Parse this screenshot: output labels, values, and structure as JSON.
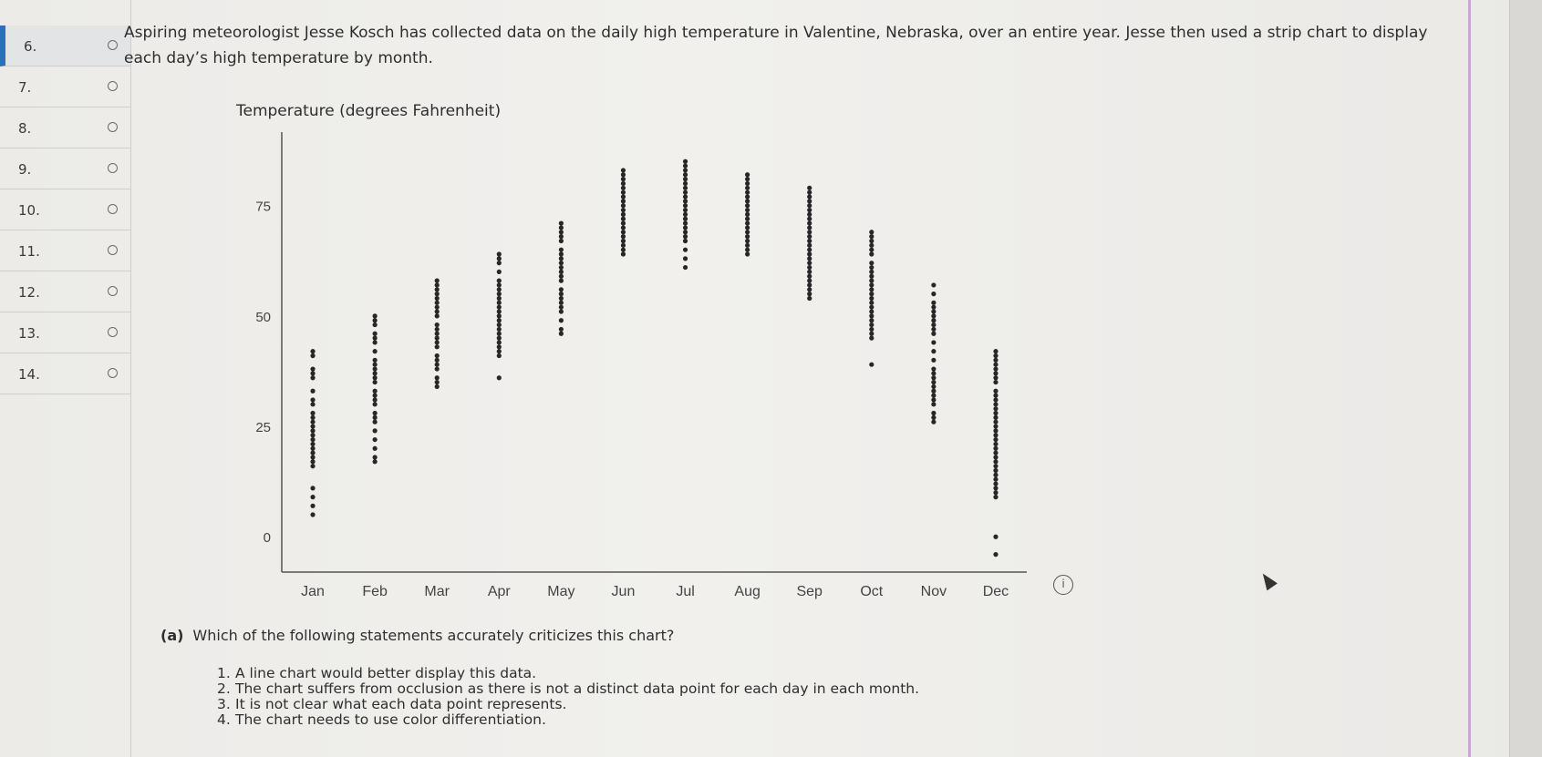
{
  "sidebar": {
    "items": [
      {
        "label": "6."
      },
      {
        "label": "7."
      },
      {
        "label": "8."
      },
      {
        "label": "9."
      },
      {
        "label": "10."
      },
      {
        "label": "11."
      },
      {
        "label": "12."
      },
      {
        "label": "13."
      },
      {
        "label": "14."
      }
    ]
  },
  "intro": {
    "text": "Aspiring meteorologist Jesse Kosch has collected data on the daily high temperature in Valentine, Nebraska, over an entire year. Jesse then used a strip chart to display each day’s high temperature by month."
  },
  "chart_data": {
    "type": "scatter",
    "title": "Temperature (degrees Fahrenheit)",
    "xlabel": "",
    "ylabel": "",
    "categories": [
      "Jan",
      "Feb",
      "Mar",
      "Apr",
      "May",
      "Jun",
      "Jul",
      "Aug",
      "Sep",
      "Oct",
      "Nov",
      "Dec"
    ],
    "ylim": [
      -8,
      90
    ],
    "yticks": [
      0,
      25,
      50,
      75
    ],
    "grid": false,
    "points": [
      [
        5,
        7,
        9,
        11,
        16,
        17,
        18,
        19,
        20,
        21,
        22,
        23,
        24,
        25,
        26,
        27,
        28,
        30,
        31,
        33,
        36,
        37,
        38,
        41,
        42
      ],
      [
        17,
        18,
        20,
        22,
        24,
        26,
        27,
        28,
        30,
        31,
        32,
        33,
        35,
        36,
        37,
        38,
        39,
        40,
        42,
        44,
        45,
        46,
        48,
        49,
        50
      ],
      [
        34,
        35,
        36,
        38,
        39,
        40,
        41,
        43,
        44,
        45,
        46,
        47,
        48,
        50,
        51,
        52,
        53,
        54,
        55,
        56,
        57,
        58
      ],
      [
        36,
        41,
        42,
        43,
        44,
        45,
        46,
        47,
        48,
        49,
        50,
        51,
        52,
        53,
        54,
        55,
        56,
        57,
        58,
        60,
        62,
        63,
        64
      ],
      [
        46,
        47,
        49,
        51,
        52,
        53,
        54,
        55,
        56,
        58,
        59,
        60,
        61,
        62,
        63,
        64,
        65,
        67,
        68,
        69,
        70,
        71
      ],
      [
        64,
        65,
        66,
        67,
        68,
        69,
        70,
        71,
        72,
        73,
        74,
        75,
        76,
        77,
        78,
        79,
        80,
        81,
        82,
        83
      ],
      [
        61,
        63,
        65,
        67,
        68,
        69,
        70,
        71,
        72,
        73,
        74,
        75,
        76,
        77,
        78,
        79,
        80,
        81,
        82,
        83,
        84,
        85
      ],
      [
        64,
        65,
        66,
        67,
        68,
        69,
        70,
        71,
        72,
        73,
        74,
        75,
        76,
        77,
        78,
        79,
        80,
        81,
        82
      ],
      [
        54,
        55,
        56,
        57,
        58,
        59,
        60,
        61,
        62,
        63,
        64,
        65,
        66,
        67,
        68,
        69,
        70,
        71,
        72,
        73,
        74,
        75,
        76,
        77,
        78,
        79
      ],
      [
        39,
        45,
        46,
        47,
        48,
        49,
        50,
        51,
        52,
        53,
        54,
        55,
        56,
        57,
        58,
        59,
        60,
        61,
        62,
        64,
        65,
        66,
        67,
        68,
        69
      ],
      [
        26,
        27,
        28,
        30,
        31,
        32,
        33,
        34,
        35,
        36,
        37,
        38,
        40,
        42,
        44,
        46,
        47,
        48,
        49,
        50,
        51,
        52,
        53,
        55,
        57
      ],
      [
        -4,
        0,
        9,
        10,
        11,
        12,
        13,
        14,
        15,
        16,
        17,
        18,
        19,
        20,
        21,
        22,
        23,
        24,
        25,
        26,
        27,
        28,
        29,
        30,
        31,
        32,
        33,
        35,
        36,
        37,
        38,
        39,
        40,
        41,
        42
      ]
    ]
  },
  "question": {
    "label": "(a)",
    "text": "Which of the following statements accurately criticizes this chart?",
    "options": [
      {
        "num": "1.",
        "text": "A line chart would better display this data."
      },
      {
        "num": "2.",
        "text": "The chart suffers from occlusion as there is not a distinct data point for each day in each month."
      },
      {
        "num": "3.",
        "text": "It is not clear what each data point represents."
      },
      {
        "num": "4.",
        "text": "The chart needs to use color differentiation."
      }
    ]
  },
  "info_icon": "info-icon",
  "colors": {
    "dot": "#2a2526",
    "accent": "#2f6fb3"
  }
}
